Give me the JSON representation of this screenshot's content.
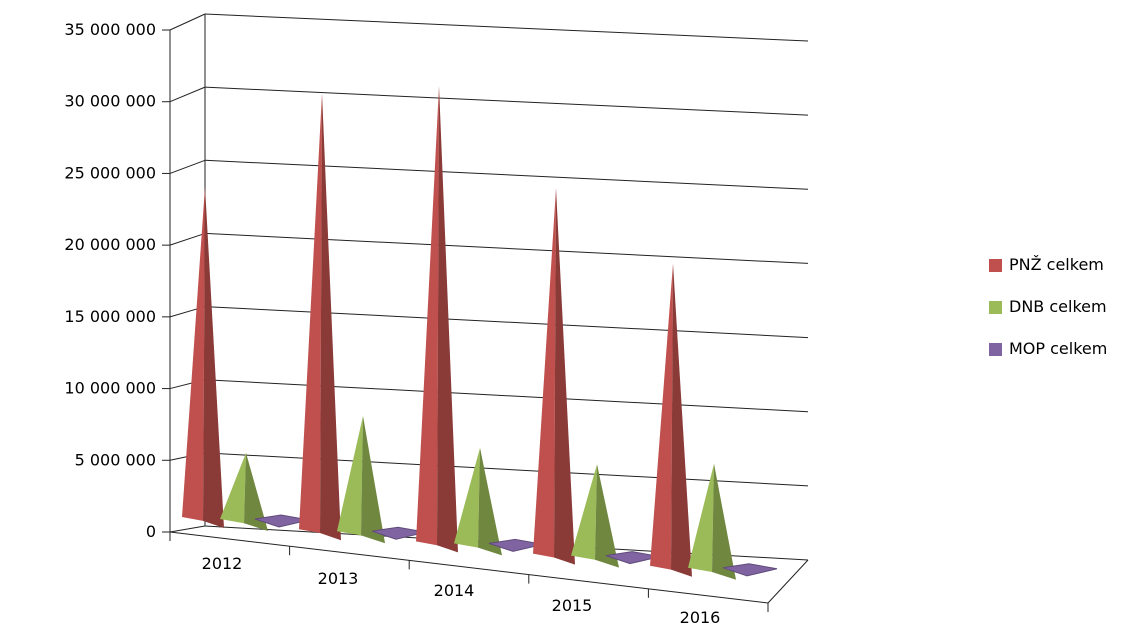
{
  "chart_data": {
    "type": "bar",
    "subtype": "3d-pyramid",
    "categories": [
      "2012",
      "2013",
      "2014",
      "2015",
      "2016"
    ],
    "series": [
      {
        "name": "PNŽ celkem",
        "values": [
          23500000,
          31000000,
          32400000,
          26000000,
          21500000
        ],
        "color": "#c0504d"
      },
      {
        "name": "DNB celkem",
        "values": [
          4700000,
          8200000,
          6800000,
          6500000,
          7400000
        ],
        "color": "#9bbb59"
      },
      {
        "name": "MOP celkem",
        "values": [
          150000,
          120000,
          110000,
          100000,
          130000
        ],
        "color": "#8064a2"
      }
    ],
    "ylim": [
      0,
      35000000
    ],
    "yticks": [
      0,
      5000000,
      10000000,
      15000000,
      20000000,
      25000000,
      30000000,
      35000000
    ],
    "ytick_labels": [
      "0",
      "5 000 000",
      "10 000 000",
      "15 000 000",
      "20 000 000",
      "25 000 000",
      "30 000 000",
      "35 000 000"
    ],
    "title": "",
    "xlabel": "",
    "ylabel": "",
    "grid": true,
    "legend_position": "right"
  }
}
